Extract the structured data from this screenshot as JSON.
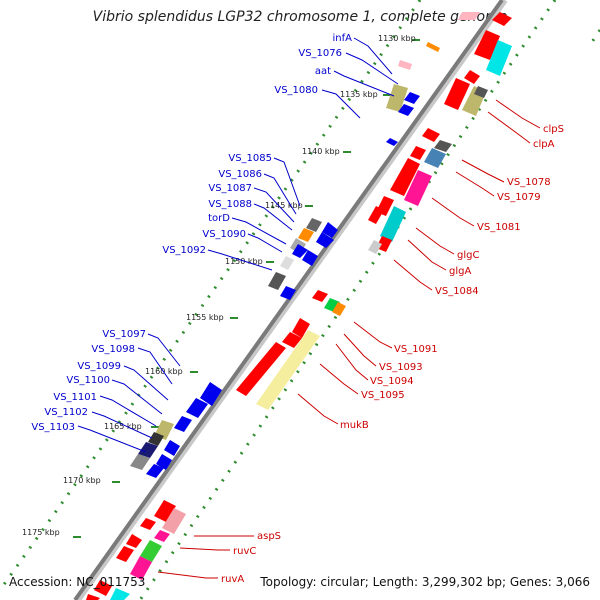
{
  "title": "Vibrio splendidus LGP32 chromosome 1, complete genome",
  "footer": {
    "accession": "Accession: NC_011753",
    "summary": "Topology: circular; Length: 3,299,302 bp; Genes: 3,066"
  },
  "scale_labels": [
    "1130 kbp",
    "1135 kbp",
    "1140 kbp",
    "1145 kbp",
    "1150 kbp",
    "1155 kbp",
    "1160 kbp",
    "1165 kbp",
    "1170 kbp",
    "1175 kbp"
  ],
  "left_labels": [
    "infA",
    "VS_1076",
    "aat",
    "VS_1080",
    "VS_1085",
    "VS_1086",
    "VS_1087",
    "VS_1088",
    "torD",
    "VS_1090",
    "VS_1092",
    "VS_1097",
    "VS_1098",
    "VS_1099",
    "VS_1100",
    "VS_1101",
    "VS_1102",
    "VS_1103"
  ],
  "right_labels": [
    "clpS",
    "clpA",
    "VS_1078",
    "VS_1079",
    "VS_1081",
    "glgC",
    "glgA",
    "VS_1084",
    "VS_1091",
    "VS_1093",
    "VS_1094",
    "VS_1095",
    "mukB",
    "aspS",
    "ruvC",
    "ruvA"
  ],
  "colors": {
    "backbone": "#7a7a7a",
    "minus_strand_gene": "#0000ee",
    "plus_strand_gene": "#ff0000",
    "left_label": "#0000cc",
    "right_label": "#cc0000",
    "tick": "#2e8b2e"
  }
}
